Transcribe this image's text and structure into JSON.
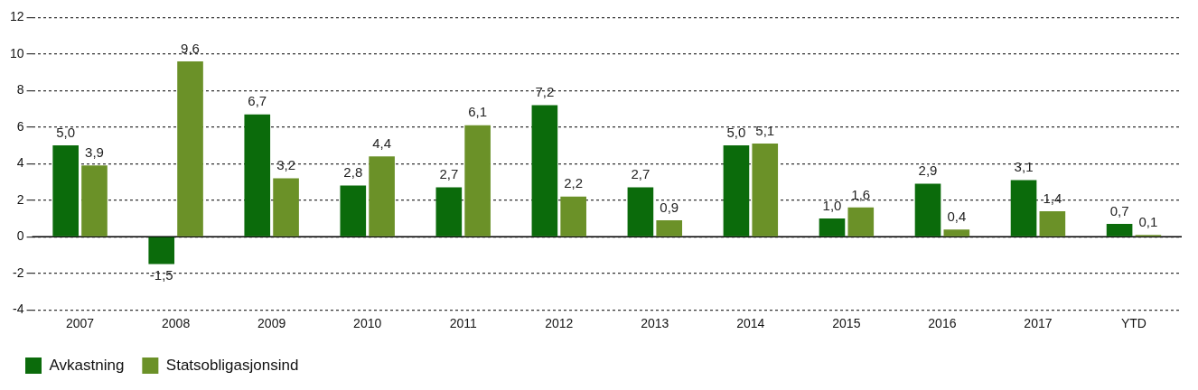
{
  "chart_data": {
    "type": "bar",
    "categories": [
      "2007",
      "2008",
      "2009",
      "2010",
      "2011",
      "2012",
      "2013",
      "2014",
      "2015",
      "2016",
      "2017",
      "YTD"
    ],
    "series": [
      {
        "name": "Avkastning",
        "color": "#0b6b0b",
        "values": [
          5.0,
          -1.5,
          6.7,
          2.8,
          2.7,
          7.2,
          2.7,
          5.0,
          1.0,
          2.9,
          3.1,
          0.7
        ],
        "value_labels": [
          "5,0",
          "-1,5",
          "6,7",
          "2,8",
          "2,7",
          "7,2",
          "2,7",
          "5,0",
          "1,0",
          "2,9",
          "3,1",
          "0,7"
        ]
      },
      {
        "name": "Statsobligasjonsind",
        "color": "#6b9128",
        "values": [
          3.9,
          9.6,
          3.2,
          4.4,
          6.1,
          2.2,
          0.9,
          5.1,
          1.6,
          0.4,
          1.4,
          0.1
        ],
        "value_labels": [
          "3,9",
          "9,6",
          "3,2",
          "4,4",
          "6,1",
          "2,2",
          "0,9",
          "5,1",
          "1,6",
          "0,4",
          "1,4",
          "0,1"
        ]
      }
    ],
    "ylim": [
      -4,
      12
    ],
    "yticks": [
      -4,
      -2,
      0,
      2,
      4,
      6,
      8,
      10,
      12
    ],
    "grid": "y",
    "legend": "bottom"
  }
}
